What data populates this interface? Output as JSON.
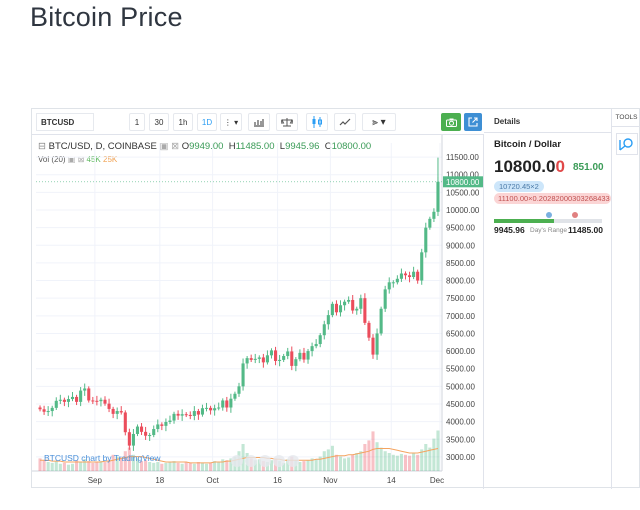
{
  "page": {
    "title": "Bitcoin Price"
  },
  "toolbar": {
    "symbol": "BTCUSD",
    "intervals": [
      "1",
      "30",
      "1h",
      "1D"
    ],
    "active_interval": "1D"
  },
  "legend": {
    "symbol_line": "BTC/USD, D, COINBASE",
    "o_label": "O",
    "o_value": "9949.00",
    "h_label": "H",
    "h_value": "11485.00",
    "l_label": "L",
    "l_value": "9945.96",
    "c_label": "C",
    "c_value": "10800.00",
    "vol_label": "Vol (20)",
    "vol_value1": "45K",
    "vol_value2": "25K"
  },
  "watermark": "BTCUSD chart by TradingView",
  "details": {
    "header": "Details",
    "pair": "Bitcoin / Dollar",
    "price_main": "10800.0",
    "price_last_digit": "0",
    "change": "851.00",
    "bid": "10720.45×2",
    "ask": "11100.00×0.20282000303268433",
    "range_low": "9945.96",
    "range_label": "Day's Range",
    "range_high": "11485.00",
    "range_position": 0.56
  },
  "tools": {
    "label": "TOOLS"
  },
  "colors": {
    "up": "#53b987",
    "down": "#eb4d5c",
    "accent": "#2a9df4"
  },
  "chart_data": {
    "type": "candlestick",
    "title": "BTC/USD, D, COINBASE",
    "x_tick_labels": [
      "Sep",
      "18",
      "Oct",
      "16",
      "Nov",
      "14",
      "Dec"
    ],
    "y_tick_labels": [
      "3000.00",
      "3500.00",
      "4000.00",
      "4500.00",
      "5000.00",
      "5500.00",
      "6000.00",
      "6500.00",
      "7000.00",
      "7500.00",
      "8000.00",
      "8500.00",
      "9000.00",
      "9500.00",
      "10000.00",
      "10500.00",
      "11000.00",
      "11500.00"
    ],
    "last_price_label": "10800.00",
    "ylim": [
      2600,
      11900
    ],
    "close": [
      4350,
      4280,
      4300,
      4390,
      4590,
      4620,
      4560,
      4640,
      4700,
      4560,
      4880,
      4940,
      4600,
      4590,
      4580,
      4620,
      4510,
      4360,
      4220,
      4300,
      4260,
      3700,
      3320,
      3650,
      3860,
      3710,
      3600,
      3620,
      3790,
      3920,
      3880,
      3990,
      4030,
      4220,
      4170,
      4210,
      4190,
      4160,
      4300,
      4200,
      4380,
      4390,
      4320,
      4380,
      4400,
      4600,
      4400,
      4650,
      4790,
      5000,
      5650,
      5800,
      5750,
      5780,
      5820,
      5680,
      5880,
      6020,
      5720,
      5750,
      5860,
      5990,
      5580,
      5770,
      5950,
      5760,
      6000,
      6140,
      6200,
      6450,
      6760,
      7020,
      7340,
      7100,
      7300,
      7400,
      7450,
      7150,
      7200,
      7500,
      6800,
      6380,
      5900,
      6500,
      7200,
      7750,
      7950,
      7950,
      8050,
      8200,
      8150,
      8100,
      8250,
      8000,
      8800,
      9500,
      9750,
      9950,
      10800
    ],
    "open": [
      4400,
      4350,
      4280,
      4300,
      4390,
      4590,
      4620,
      4560,
      4640,
      4700,
      4560,
      4880,
      4940,
      4600,
      4590,
      4580,
      4620,
      4510,
      4360,
      4220,
      4300,
      4260,
      3700,
      3320,
      3650,
      3860,
      3710,
      3600,
      3620,
      3790,
      3920,
      3880,
      3990,
      4030,
      4220,
      4170,
      4210,
      4190,
      4160,
      4300,
      4200,
      4380,
      4390,
      4320,
      4380,
      4400,
      4600,
      4400,
      4650,
      4790,
      5000,
      5650,
      5800,
      5750,
      5780,
      5820,
      5680,
      5880,
      6020,
      5720,
      5750,
      5860,
      5990,
      5580,
      5770,
      5950,
      5760,
      6000,
      6140,
      6200,
      6450,
      6760,
      7020,
      7340,
      7100,
      7300,
      7400,
      7450,
      7150,
      7200,
      7500,
      6800,
      6380,
      5900,
      6500,
      7200,
      7750,
      7950,
      7950,
      8050,
      8200,
      8150,
      8100,
      8250,
      8000,
      8800,
      9500,
      9750,
      9949
    ],
    "volume": [
      14,
      12,
      10,
      9,
      11,
      8,
      9,
      7,
      8,
      12,
      10,
      13,
      11,
      9,
      10,
      11,
      10,
      12,
      18,
      16,
      15,
      22,
      26,
      18,
      14,
      11,
      12,
      10,
      9,
      10,
      8,
      9,
      10,
      11,
      9,
      8,
      10,
      9,
      8,
      10,
      9,
      8,
      9,
      11,
      10,
      13,
      12,
      14,
      16,
      22,
      30,
      20,
      14,
      12,
      13,
      11,
      10,
      12,
      14,
      11,
      9,
      13,
      16,
      12,
      10,
      11,
      12,
      14,
      13,
      16,
      22,
      24,
      28,
      18,
      16,
      14,
      15,
      18,
      20,
      22,
      30,
      34,
      44,
      32,
      26,
      22,
      20,
      18,
      17,
      19,
      18,
      17,
      20,
      18,
      24,
      30,
      26,
      36,
      45
    ],
    "volume_ma": [
      12,
      12,
      12,
      11,
      11,
      11,
      10,
      10,
      10,
      10,
      10,
      10,
      10,
      10,
      10,
      10,
      11,
      11,
      12,
      13,
      14,
      15,
      16,
      16,
      16,
      16,
      15,
      14,
      13,
      12,
      11,
      10,
      10,
      10,
      10,
      10,
      10,
      9,
      9,
      9,
      9,
      9,
      9,
      10,
      10,
      10,
      11,
      11,
      12,
      13,
      14,
      15,
      15,
      15,
      15,
      15,
      14,
      14,
      13,
      13,
      12,
      12,
      12,
      12,
      12,
      12,
      12,
      12,
      13,
      13,
      14,
      15,
      16,
      17,
      17,
      17,
      18,
      18,
      19,
      20,
      21,
      22,
      24,
      25,
      25,
      25,
      25,
      24,
      23,
      22,
      21,
      20,
      20,
      20,
      21,
      22,
      23,
      24,
      25
    ]
  }
}
